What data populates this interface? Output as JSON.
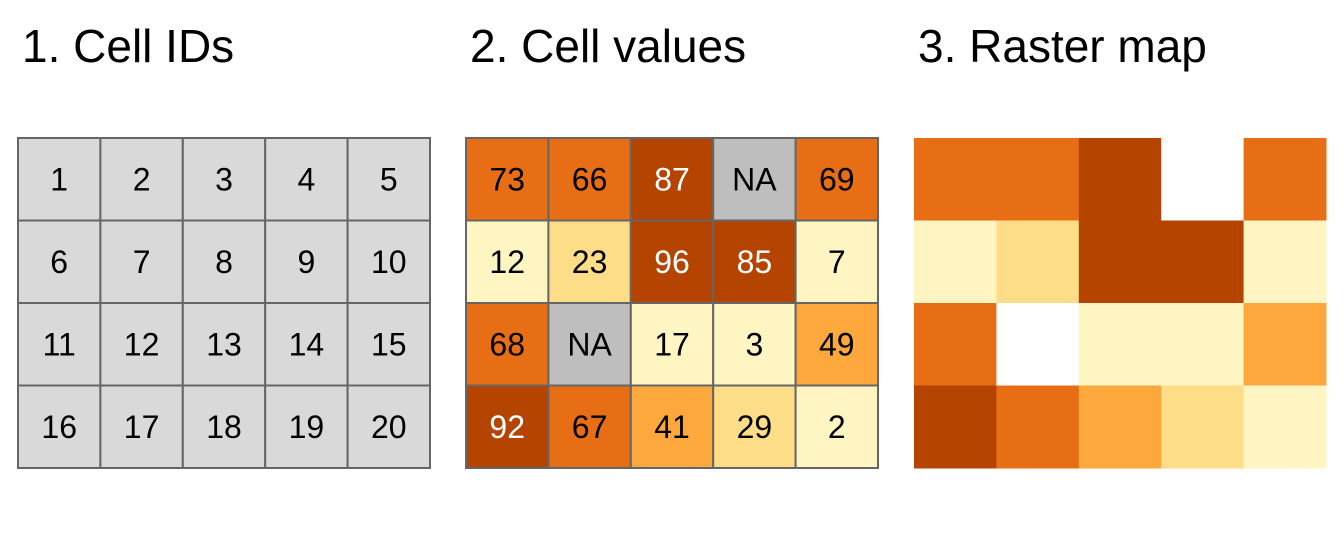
{
  "panels": [
    {
      "title": "1. Cell IDs",
      "color": "#d9d9d9",
      "cells": [
        [
          1,
          2,
          3,
          4,
          5
        ],
        [
          6,
          7,
          8,
          9,
          10
        ],
        [
          11,
          12,
          13,
          14,
          15
        ],
        [
          16,
          17,
          18,
          19,
          20
        ]
      ]
    },
    {
      "title": "2. Cell values",
      "cells": [
        [
          73,
          66,
          87,
          "NA",
          69
        ],
        [
          12,
          23,
          96,
          85,
          7
        ],
        [
          68,
          "NA",
          17,
          3,
          49
        ],
        [
          92,
          67,
          41,
          29,
          2
        ]
      ],
      "colors": [
        [
          "#e86e16",
          "#e86e16",
          "#b54401",
          "#bebebe",
          "#e86e16"
        ],
        [
          "#fff5c3",
          "#fedd88",
          "#b54401",
          "#b54401",
          "#fff5c3"
        ],
        [
          "#e86e16",
          "#bebebe",
          "#fff5c3",
          "#fff5c3",
          "#fda83c"
        ],
        [
          "#b54401",
          "#e86e16",
          "#fda83c",
          "#fedd88",
          "#fff5c3"
        ]
      ]
    },
    {
      "title": "3. Raster map",
      "na_color": "#ffffff"
    }
  ]
}
